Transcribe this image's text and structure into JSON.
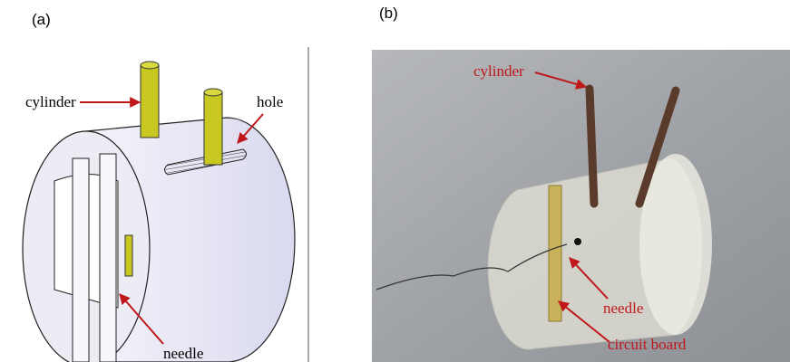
{
  "panels": [
    {
      "label": "(a)",
      "annotations": [
        "cylinder",
        "hole",
        "needle"
      ]
    },
    {
      "label": "(b)",
      "annotations": [
        "cylinder",
        "needle",
        "circuit board"
      ]
    }
  ]
}
